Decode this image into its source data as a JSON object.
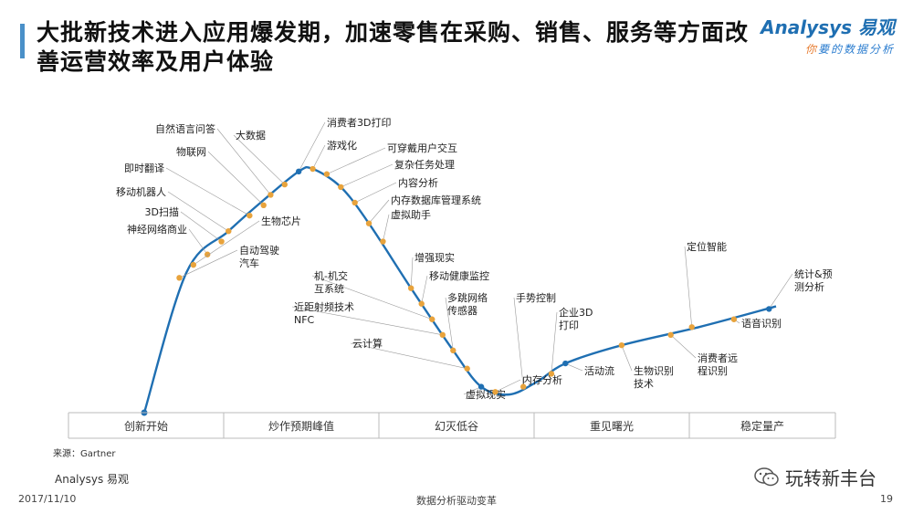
{
  "title": "大批新技术进入应用爆发期，加速零售在采购、销售、服务等方面改善运营效率及用户体验",
  "logo": {
    "brand": "Analysys 易观",
    "slogan_a": "你",
    "slogan_b": "要的数据分析"
  },
  "source": "来源：Gartner",
  "footer": {
    "brand": "Analysys 易观",
    "date": "2017/11/10",
    "center": "数据分析驱动变革",
    "page": "19"
  },
  "wechat": {
    "name": "玩转新丰台",
    "icon": "wechat-icon"
  },
  "colors": {
    "curve": "#1f6fb2",
    "dot": "#e8a33c",
    "accent": "#4a90c8"
  },
  "chart_data": {
    "type": "line",
    "title": "",
    "xlabel": "",
    "ylabel": "",
    "grid": false,
    "phases": [
      "创新开始",
      "炒作预期峰值",
      "幻灭低谷",
      "重见曙光",
      "稳定量产"
    ],
    "technologies": [
      {
        "name": "自然语言问答",
        "x": 0.34,
        "y": 0.84
      },
      {
        "name": "物联网",
        "x": 0.33,
        "y": 0.8
      },
      {
        "name": "即时翻译",
        "x": 0.31,
        "y": 0.76
      },
      {
        "name": "移动机器人",
        "x": 0.28,
        "y": 0.7
      },
      {
        "name": "3D扫描",
        "x": 0.27,
        "y": 0.66
      },
      {
        "name": "神经网络商业",
        "x": 0.25,
        "y": 0.61
      },
      {
        "name": "生物芯片",
        "x": 0.23,
        "y": 0.57
      },
      {
        "name": "自动驾驶汽车",
        "x": 0.21,
        "y": 0.52
      },
      {
        "name": "大数据",
        "x": 0.36,
        "y": 0.88
      },
      {
        "name": "消费者3D打印",
        "x": 0.38,
        "y": 0.93
      },
      {
        "name": "游戏化",
        "x": 0.4,
        "y": 0.94
      },
      {
        "name": "可穿戴用户交互",
        "x": 0.42,
        "y": 0.92
      },
      {
        "name": "复杂任务处理",
        "x": 0.44,
        "y": 0.87
      },
      {
        "name": "内容分析",
        "x": 0.46,
        "y": 0.81
      },
      {
        "name": "内存数据库管理系统",
        "x": 0.48,
        "y": 0.73
      },
      {
        "name": "虚拟助手",
        "x": 0.5,
        "y": 0.66
      },
      {
        "name": "增强现实",
        "x": 0.54,
        "y": 0.48
      },
      {
        "name": "移动健康监控",
        "x": 0.555,
        "y": 0.42
      },
      {
        "name": "机-机交互系统",
        "x": 0.57,
        "y": 0.36
      },
      {
        "name": "近距射频技术NFC",
        "x": 0.585,
        "y": 0.3
      },
      {
        "name": "多跳网络传感器",
        "x": 0.6,
        "y": 0.24
      },
      {
        "name": "云计算",
        "x": 0.62,
        "y": 0.17
      },
      {
        "name": "虚拟现实",
        "x": 0.64,
        "y": 0.1
      },
      {
        "name": "内存分析",
        "x": 0.66,
        "y": 0.08
      },
      {
        "name": "手势控制",
        "x": 0.7,
        "y": 0.1
      },
      {
        "name": "企业3D打印",
        "x": 0.74,
        "y": 0.15
      },
      {
        "name": "活动流",
        "x": 0.76,
        "y": 0.19
      },
      {
        "name": "生物识别技术",
        "x": 0.84,
        "y": 0.26
      },
      {
        "name": "消费者远程识别",
        "x": 0.91,
        "y": 0.3
      },
      {
        "name": "定位智能",
        "x": 0.94,
        "y": 0.33
      },
      {
        "name": "语音识别",
        "x": 1.0,
        "y": 0.36
      },
      {
        "name": "统计&预测分析",
        "x": 1.05,
        "y": 0.4
      }
    ]
  }
}
